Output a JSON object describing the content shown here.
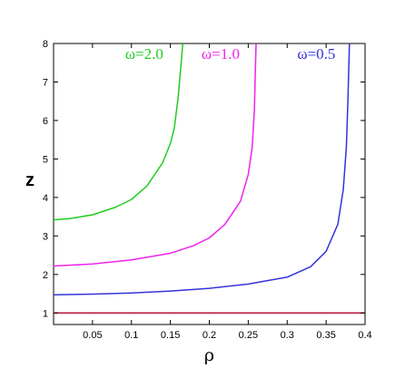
{
  "chart_data": {
    "type": "line",
    "title": "",
    "xlabel": "ρ",
    "ylabel": "z",
    "xlim": [
      0,
      0.4
    ],
    "ylim": [
      0.7,
      8
    ],
    "x_ticks": [
      "0.05",
      "0.1",
      "0.15",
      "0.2",
      "0.25",
      "0.3",
      "0.35",
      "0.4"
    ],
    "x_tick_values": [
      0.05,
      0.1,
      0.15,
      0.2,
      0.25,
      0.3,
      0.35,
      0.4
    ],
    "y_ticks": [
      "1",
      "2",
      "3",
      "4",
      "5",
      "6",
      "7",
      "8"
    ],
    "y_tick_values": [
      1,
      2,
      3,
      4,
      5,
      6,
      7,
      8
    ],
    "grid": false,
    "legend": "none",
    "series": [
      {
        "name": "ω=2.0",
        "color": "#22cc22",
        "points": [
          [
            0,
            3.42
          ],
          [
            0.02,
            3.45
          ],
          [
            0.05,
            3.55
          ],
          [
            0.08,
            3.75
          ],
          [
            0.1,
            3.95
          ],
          [
            0.12,
            4.3
          ],
          [
            0.14,
            4.9
          ],
          [
            0.15,
            5.4
          ],
          [
            0.155,
            5.8
          ],
          [
            0.16,
            6.6
          ],
          [
            0.163,
            7.3
          ],
          [
            0.166,
            8.0
          ]
        ]
      },
      {
        "name": "ω=1.0",
        "color": "#ee22ee",
        "points": [
          [
            0,
            2.22
          ],
          [
            0.05,
            2.27
          ],
          [
            0.1,
            2.38
          ],
          [
            0.15,
            2.55
          ],
          [
            0.18,
            2.75
          ],
          [
            0.2,
            2.95
          ],
          [
            0.22,
            3.3
          ],
          [
            0.24,
            3.9
          ],
          [
            0.25,
            4.6
          ],
          [
            0.255,
            5.3
          ],
          [
            0.258,
            6.3
          ],
          [
            0.259,
            7.2
          ],
          [
            0.26,
            8.0
          ]
        ]
      },
      {
        "name": "ω=0.5",
        "color": "#3333dd",
        "points": [
          [
            0,
            1.47
          ],
          [
            0.05,
            1.49
          ],
          [
            0.1,
            1.52
          ],
          [
            0.15,
            1.57
          ],
          [
            0.2,
            1.64
          ],
          [
            0.25,
            1.75
          ],
          [
            0.3,
            1.93
          ],
          [
            0.33,
            2.2
          ],
          [
            0.35,
            2.6
          ],
          [
            0.365,
            3.3
          ],
          [
            0.372,
            4.2
          ],
          [
            0.376,
            5.3
          ],
          [
            0.378,
            6.5
          ],
          [
            0.38,
            8.0
          ]
        ]
      },
      {
        "color": "#bb1133",
        "points": [
          [
            0,
            1.0
          ],
          [
            0.4,
            1.0
          ]
        ]
      }
    ],
    "annotations": [
      {
        "text": "ω=2.0",
        "x": 0.092,
        "y": 7.6,
        "color": "#22cc22"
      },
      {
        "text": "ω=1.0",
        "x": 0.19,
        "y": 7.6,
        "color": "#ee22ee"
      },
      {
        "text": "ω=0.5",
        "x": 0.313,
        "y": 7.6,
        "color": "#3333dd"
      }
    ]
  }
}
